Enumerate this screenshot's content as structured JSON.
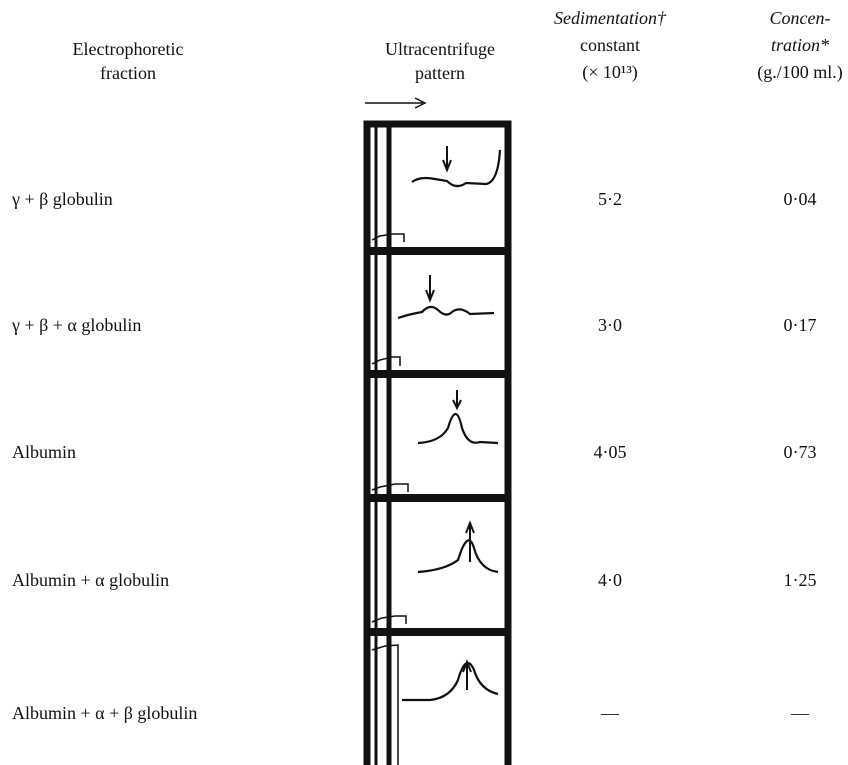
{
  "table": {
    "header": [
      [
        "Electrophoretic",
        "fraction"
      ],
      [
        "Ultracentrifuge",
        "pattern"
      ],
      [
        "Sedimentation†",
        "constant",
        "(× 10¹³)"
      ],
      [
        "Concen-",
        "tration*",
        "(g./100 ml.)"
      ]
    ],
    "rows": [
      [
        "γ + β globulin",
        "5·2",
        "0·04"
      ],
      [
        "γ + β + α globulin",
        "3·0",
        "0·17"
      ],
      [
        "Albumin",
        "4·05",
        "0·73"
      ],
      [
        "Albumin + α globulin",
        "4·0",
        "1·25"
      ],
      [
        "Albumin + α + β globulin",
        "—",
        "—"
      ]
    ]
  }
}
